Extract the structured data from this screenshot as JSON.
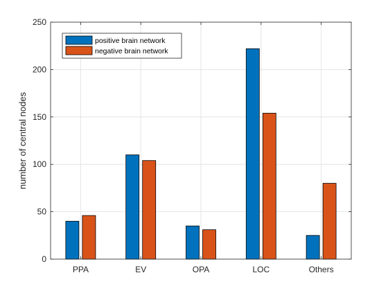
{
  "chart_data": {
    "type": "bar",
    "title": "",
    "xlabel": "",
    "ylabel": "number of central nodes",
    "categories": [
      "PPA",
      "EV",
      "OPA",
      "LOC",
      "Others"
    ],
    "series": [
      {
        "name": "positive brain network",
        "values": [
          40,
          110,
          35,
          222,
          25
        ],
        "color": "#0072BD"
      },
      {
        "name": "negative brain network",
        "values": [
          46,
          104,
          31,
          154,
          80
        ],
        "color": "#D95319"
      }
    ],
    "ylim": [
      0,
      250
    ],
    "yticks": [
      0,
      50,
      100,
      150,
      200,
      250
    ],
    "grid": true,
    "legend_position": "top-left"
  }
}
